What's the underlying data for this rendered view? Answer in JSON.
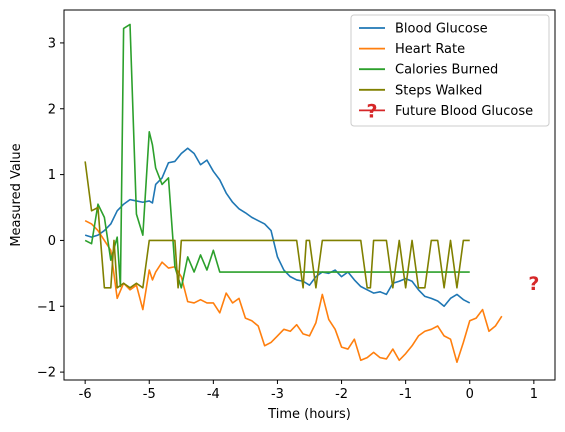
{
  "chart_data": {
    "type": "line",
    "xlabel": "Time (hours)",
    "ylabel": "Measured Value",
    "xlim": [
      -6.33,
      1.33
    ],
    "ylim": [
      -2.12,
      3.5
    ],
    "x_ticks": [
      -6,
      -5,
      -4,
      -3,
      -2,
      -1,
      0,
      1
    ],
    "x_tick_labels": [
      "-6",
      "-5",
      "-4",
      "-3",
      "-2",
      "-1",
      "0",
      "1"
    ],
    "y_ticks": [
      -2,
      -1,
      0,
      1,
      2,
      3
    ],
    "y_tick_labels": [
      "−2",
      "−1",
      "0",
      "1",
      "2",
      "3"
    ],
    "grid": false,
    "legend_position": "top-right",
    "series": [
      {
        "name": "Blood Glucose",
        "color": "#1f77b4",
        "points": [
          [
            -6.0,
            0.08
          ],
          [
            -5.9,
            0.05
          ],
          [
            -5.8,
            0.08
          ],
          [
            -5.7,
            0.15
          ],
          [
            -5.6,
            0.25
          ],
          [
            -5.5,
            0.45
          ],
          [
            -5.4,
            0.55
          ],
          [
            -5.3,
            0.62
          ],
          [
            -5.2,
            0.6
          ],
          [
            -5.1,
            0.58
          ],
          [
            -5.0,
            0.6
          ],
          [
            -4.95,
            0.57
          ],
          [
            -4.9,
            0.85
          ],
          [
            -4.8,
            0.95
          ],
          [
            -4.7,
            1.18
          ],
          [
            -4.6,
            1.2
          ],
          [
            -4.5,
            1.32
          ],
          [
            -4.4,
            1.4
          ],
          [
            -4.3,
            1.32
          ],
          [
            -4.2,
            1.15
          ],
          [
            -4.1,
            1.22
          ],
          [
            -4.0,
            1.05
          ],
          [
            -3.9,
            0.92
          ],
          [
            -3.8,
            0.72
          ],
          [
            -3.7,
            0.58
          ],
          [
            -3.6,
            0.48
          ],
          [
            -3.5,
            0.42
          ],
          [
            -3.4,
            0.35
          ],
          [
            -3.3,
            0.3
          ],
          [
            -3.2,
            0.25
          ],
          [
            -3.1,
            0.15
          ],
          [
            -3.0,
            -0.25
          ],
          [
            -2.9,
            -0.45
          ],
          [
            -2.8,
            -0.55
          ],
          [
            -2.7,
            -0.6
          ],
          [
            -2.6,
            -0.62
          ],
          [
            -2.5,
            -0.68
          ],
          [
            -2.4,
            -0.55
          ],
          [
            -2.3,
            -0.48
          ],
          [
            -2.2,
            -0.5
          ],
          [
            -2.1,
            -0.45
          ],
          [
            -2.0,
            -0.55
          ],
          [
            -1.9,
            -0.48
          ],
          [
            -1.8,
            -0.6
          ],
          [
            -1.7,
            -0.7
          ],
          [
            -1.6,
            -0.75
          ],
          [
            -1.5,
            -0.8
          ],
          [
            -1.4,
            -0.78
          ],
          [
            -1.3,
            -0.82
          ],
          [
            -1.2,
            -0.65
          ],
          [
            -1.1,
            -0.62
          ],
          [
            -1.0,
            -0.58
          ],
          [
            -0.9,
            -0.62
          ],
          [
            -0.8,
            -0.75
          ],
          [
            -0.7,
            -0.85
          ],
          [
            -0.6,
            -0.88
          ],
          [
            -0.5,
            -0.92
          ],
          [
            -0.4,
            -1.0
          ],
          [
            -0.3,
            -0.88
          ],
          [
            -0.2,
            -0.82
          ],
          [
            -0.1,
            -0.9
          ],
          [
            0.0,
            -0.95
          ]
        ]
      },
      {
        "name": "Heart Rate",
        "color": "#ff7f0e",
        "points": [
          [
            -6.0,
            0.3
          ],
          [
            -5.9,
            0.25
          ],
          [
            -5.8,
            0.15
          ],
          [
            -5.7,
            0.0
          ],
          [
            -5.6,
            -0.15
          ],
          [
            -5.5,
            -0.88
          ],
          [
            -5.4,
            -0.65
          ],
          [
            -5.3,
            -0.75
          ],
          [
            -5.2,
            -0.68
          ],
          [
            -5.1,
            -1.05
          ],
          [
            -5.0,
            -0.45
          ],
          [
            -4.95,
            -0.6
          ],
          [
            -4.9,
            -0.48
          ],
          [
            -4.8,
            -0.33
          ],
          [
            -4.7,
            -0.42
          ],
          [
            -4.6,
            -0.4
          ],
          [
            -4.5,
            -0.55
          ],
          [
            -4.4,
            -0.93
          ],
          [
            -4.3,
            -0.95
          ],
          [
            -4.2,
            -0.9
          ],
          [
            -4.1,
            -0.95
          ],
          [
            -4.0,
            -0.95
          ],
          [
            -3.9,
            -1.1
          ],
          [
            -3.8,
            -0.8
          ],
          [
            -3.7,
            -0.95
          ],
          [
            -3.6,
            -0.88
          ],
          [
            -3.5,
            -1.18
          ],
          [
            -3.4,
            -1.22
          ],
          [
            -3.3,
            -1.3
          ],
          [
            -3.2,
            -1.6
          ],
          [
            -3.1,
            -1.55
          ],
          [
            -3.0,
            -1.45
          ],
          [
            -2.9,
            -1.35
          ],
          [
            -2.8,
            -1.38
          ],
          [
            -2.7,
            -1.28
          ],
          [
            -2.6,
            -1.42
          ],
          [
            -2.5,
            -1.45
          ],
          [
            -2.4,
            -1.25
          ],
          [
            -2.3,
            -0.82
          ],
          [
            -2.2,
            -1.2
          ],
          [
            -2.1,
            -1.35
          ],
          [
            -2.0,
            -1.62
          ],
          [
            -1.9,
            -1.65
          ],
          [
            -1.8,
            -1.5
          ],
          [
            -1.7,
            -1.82
          ],
          [
            -1.6,
            -1.78
          ],
          [
            -1.5,
            -1.7
          ],
          [
            -1.4,
            -1.78
          ],
          [
            -1.3,
            -1.8
          ],
          [
            -1.2,
            -1.65
          ],
          [
            -1.1,
            -1.82
          ],
          [
            -1.0,
            -1.72
          ],
          [
            -0.9,
            -1.6
          ],
          [
            -0.8,
            -1.45
          ],
          [
            -0.7,
            -1.38
          ],
          [
            -0.6,
            -1.35
          ],
          [
            -0.5,
            -1.3
          ],
          [
            -0.4,
            -1.45
          ],
          [
            -0.3,
            -1.5
          ],
          [
            -0.2,
            -1.85
          ],
          [
            -0.1,
            -1.55
          ],
          [
            0.0,
            -1.22
          ],
          [
            0.1,
            -1.18
          ],
          [
            0.2,
            -1.05
          ],
          [
            0.3,
            -1.38
          ],
          [
            0.4,
            -1.3
          ],
          [
            0.5,
            -1.15
          ]
        ]
      },
      {
        "name": "Calories Burned",
        "color": "#2ca02c",
        "points": [
          [
            -6.0,
            0.0
          ],
          [
            -5.9,
            -0.05
          ],
          [
            -5.8,
            0.55
          ],
          [
            -5.7,
            0.35
          ],
          [
            -5.6,
            -0.3
          ],
          [
            -5.5,
            0.05
          ],
          [
            -5.45,
            -0.7
          ],
          [
            -5.4,
            3.22
          ],
          [
            -5.3,
            3.28
          ],
          [
            -5.2,
            0.4
          ],
          [
            -5.1,
            0.08
          ],
          [
            -5.0,
            1.65
          ],
          [
            -4.95,
            1.45
          ],
          [
            -4.9,
            1.1
          ],
          [
            -4.8,
            0.85
          ],
          [
            -4.7,
            0.95
          ],
          [
            -4.6,
            -0.4
          ],
          [
            -4.5,
            -0.72
          ],
          [
            -4.4,
            -0.25
          ],
          [
            -4.3,
            -0.48
          ],
          [
            -4.2,
            -0.22
          ],
          [
            -4.1,
            -0.45
          ],
          [
            -4.0,
            -0.15
          ],
          [
            -3.9,
            -0.48
          ],
          [
            -3.8,
            -0.48
          ],
          [
            -3.7,
            -0.48
          ],
          [
            -3.6,
            -0.48
          ],
          [
            -3.5,
            -0.48
          ],
          [
            -3.4,
            -0.48
          ],
          [
            -3.3,
            -0.48
          ],
          [
            -3.2,
            -0.48
          ],
          [
            -3.1,
            -0.48
          ],
          [
            -3.0,
            -0.48
          ],
          [
            -2.9,
            -0.48
          ],
          [
            -2.8,
            -0.48
          ],
          [
            -2.7,
            -0.48
          ],
          [
            -2.6,
            -0.48
          ],
          [
            -2.5,
            -0.48
          ],
          [
            -2.4,
            -0.48
          ],
          [
            -2.3,
            -0.48
          ],
          [
            -2.2,
            -0.48
          ],
          [
            -2.1,
            -0.48
          ],
          [
            -2.0,
            -0.48
          ],
          [
            -1.9,
            -0.48
          ],
          [
            -1.8,
            -0.48
          ],
          [
            -1.7,
            -0.48
          ],
          [
            -1.6,
            -0.48
          ],
          [
            -1.5,
            -0.48
          ],
          [
            -1.4,
            -0.48
          ],
          [
            -1.3,
            -0.48
          ],
          [
            -1.2,
            -0.48
          ],
          [
            -1.1,
            -0.48
          ],
          [
            -1.0,
            -0.48
          ],
          [
            -0.9,
            -0.48
          ],
          [
            -0.8,
            -0.48
          ],
          [
            -0.7,
            -0.48
          ],
          [
            -0.6,
            -0.48
          ],
          [
            -0.5,
            -0.48
          ],
          [
            -0.4,
            -0.48
          ],
          [
            -0.3,
            -0.48
          ],
          [
            -0.2,
            -0.48
          ],
          [
            -0.1,
            -0.48
          ],
          [
            0.0,
            -0.48
          ]
        ]
      },
      {
        "name": "Steps Walked",
        "color": "#808000",
        "points": [
          [
            -6.0,
            1.2
          ],
          [
            -5.9,
            0.45
          ],
          [
            -5.8,
            0.5
          ],
          [
            -5.7,
            -0.72
          ],
          [
            -5.6,
            -0.72
          ],
          [
            -5.55,
            0.0
          ],
          [
            -5.5,
            -0.72
          ],
          [
            -5.4,
            -0.65
          ],
          [
            -5.3,
            -0.72
          ],
          [
            -5.2,
            -0.65
          ],
          [
            -5.1,
            -0.72
          ],
          [
            -5.0,
            0.0
          ],
          [
            -4.9,
            0.0
          ],
          [
            -4.8,
            0.0
          ],
          [
            -4.7,
            0.0
          ],
          [
            -4.6,
            0.0
          ],
          [
            -4.55,
            -0.72
          ],
          [
            -4.5,
            0.0
          ],
          [
            -4.4,
            0.0
          ],
          [
            -4.3,
            0.0
          ],
          [
            -4.2,
            0.0
          ],
          [
            -4.1,
            0.0
          ],
          [
            -4.0,
            0.0
          ],
          [
            -3.9,
            0.0
          ],
          [
            -3.8,
            0.0
          ],
          [
            -3.7,
            0.0
          ],
          [
            -3.6,
            0.0
          ],
          [
            -3.5,
            0.0
          ],
          [
            -3.4,
            0.0
          ],
          [
            -3.3,
            0.0
          ],
          [
            -3.2,
            0.0
          ],
          [
            -3.1,
            0.0
          ],
          [
            -3.0,
            0.0
          ],
          [
            -2.9,
            0.0
          ],
          [
            -2.8,
            0.0
          ],
          [
            -2.7,
            0.0
          ],
          [
            -2.6,
            -0.72
          ],
          [
            -2.55,
            0.0
          ],
          [
            -2.5,
            0.0
          ],
          [
            -2.4,
            -0.72
          ],
          [
            -2.3,
            0.0
          ],
          [
            -2.2,
            0.0
          ],
          [
            -2.1,
            0.0
          ],
          [
            -2.0,
            0.0
          ],
          [
            -1.9,
            0.0
          ],
          [
            -1.8,
            0.0
          ],
          [
            -1.7,
            0.0
          ],
          [
            -1.6,
            -0.72
          ],
          [
            -1.55,
            -0.72
          ],
          [
            -1.5,
            0.0
          ],
          [
            -1.4,
            0.0
          ],
          [
            -1.3,
            0.0
          ],
          [
            -1.2,
            -0.72
          ],
          [
            -1.1,
            0.0
          ],
          [
            -1.0,
            -0.72
          ],
          [
            -0.9,
            0.0
          ],
          [
            -0.8,
            -0.72
          ],
          [
            -0.7,
            -0.72
          ],
          [
            -0.6,
            0.0
          ],
          [
            -0.5,
            0.0
          ],
          [
            -0.4,
            -0.72
          ],
          [
            -0.3,
            0.0
          ],
          [
            -0.2,
            -0.72
          ],
          [
            -0.1,
            0.0
          ],
          [
            0.0,
            0.0
          ]
        ]
      },
      {
        "name": "Future Blood Glucose",
        "color": "#d62728",
        "marker": "?",
        "points": [
          [
            1.0,
            -0.65
          ]
        ]
      }
    ]
  }
}
